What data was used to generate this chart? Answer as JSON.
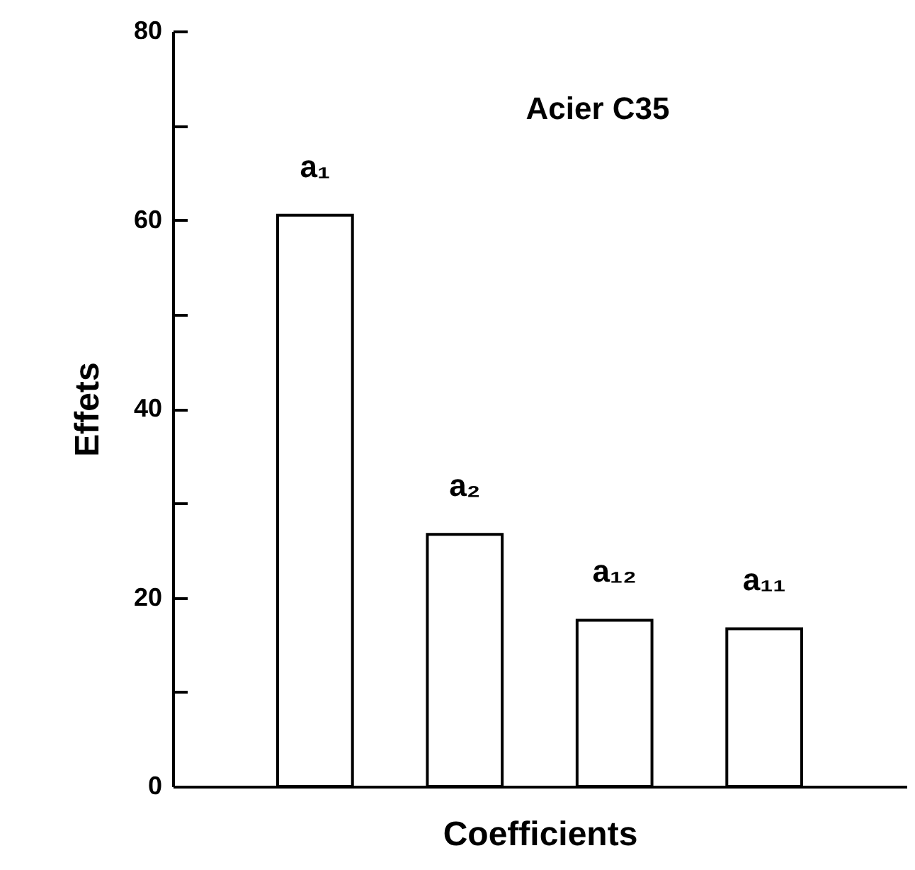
{
  "chart_data": {
    "type": "bar",
    "xlabel": "Coefficients",
    "ylabel": "Effets",
    "annotations": [
      "Acier C35"
    ],
    "categories": [
      "a₁",
      "a₂",
      "a₁₂",
      "a₁₁"
    ],
    "values": [
      60.5,
      26.7,
      17.6,
      16.7
    ],
    "color": "#ffffff",
    "ylim": [
      0,
      80
    ],
    "yticks": [
      0,
      {
        "value": 10,
        "label": null
      },
      20,
      {
        "value": 30,
        "label": null
      },
      40,
      {
        "value": 50,
        "label": null
      },
      60,
      {
        "value": 70,
        "label": null
      },
      80
    ],
    "grid": false,
    "tick_labels": "y"
  }
}
